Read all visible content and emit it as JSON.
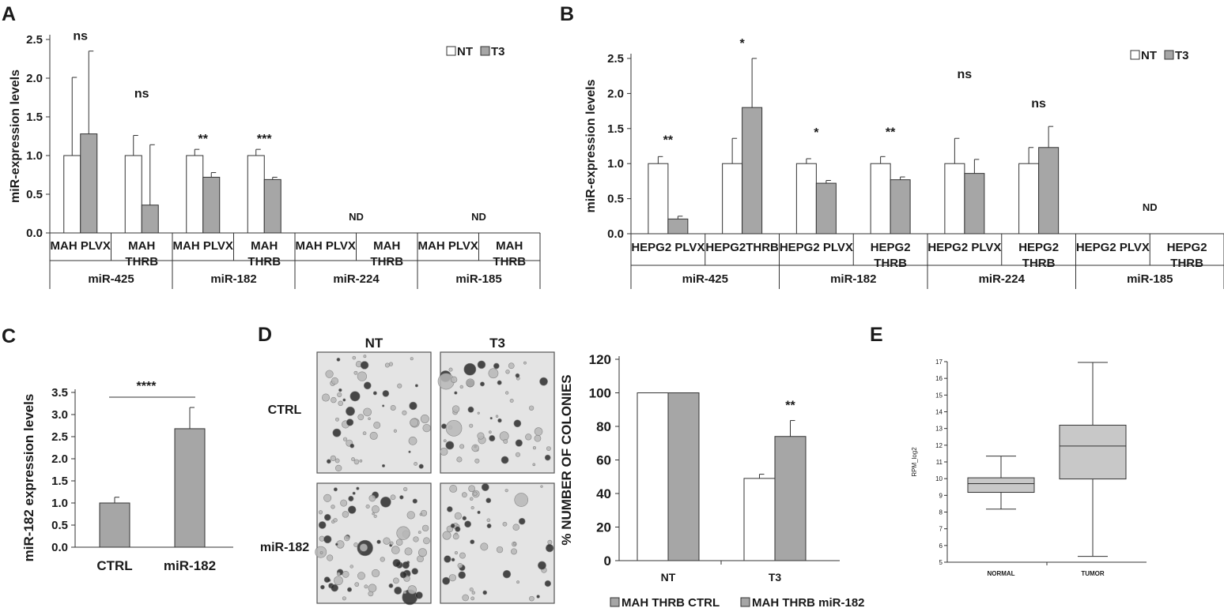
{
  "panels": [
    {
      "id": "A",
      "label": "A",
      "chart_data": {
        "type": "bar",
        "ylabel": "miR-expression levels",
        "ylim": [
          0,
          2.5
        ],
        "yticks": [
          "0.0",
          "0.5",
          "1.0",
          "1.5",
          "2.0",
          "2.5"
        ],
        "legend": [
          "NT",
          "T3"
        ],
        "legend_position": "top-right",
        "series": [
          {
            "name": "NT"
          },
          {
            "name": "T3"
          }
        ],
        "colors": {
          "NT": "#ffffff",
          "T3": "#a6a6a6"
        },
        "categories": [
          {
            "l1": "MAH PLVX",
            "l2": "",
            "nt": 1.0,
            "nt_err": 1.01,
            "t3": 1.28,
            "t3_err": 1.07,
            "sig": "ns"
          },
          {
            "l1": "MAH",
            "l2": "THRB",
            "nt": 1.0,
            "nt_err": 0.26,
            "t3": 0.36,
            "t3_err": 0.78,
            "sig": "ns"
          },
          {
            "l1": "MAH PLVX",
            "l2": "",
            "nt": 1.0,
            "nt_err": 0.08,
            "t3": 0.72,
            "t3_err": 0.06,
            "sig": "**"
          },
          {
            "l1": "MAH",
            "l2": "THRB",
            "nt": 1.0,
            "nt_err": 0.08,
            "t3": 0.69,
            "t3_err": 0.03,
            "sig": "***"
          },
          {
            "l1": "MAH PLVX",
            "l2": "",
            "nt": null,
            "t3": null,
            "sig": ""
          },
          {
            "l1": "MAH",
            "l2": "THRB",
            "nt": null,
            "t3": null,
            "sig": ""
          },
          {
            "l1": "MAH PLVX",
            "l2": "",
            "nt": null,
            "t3": null,
            "sig": ""
          },
          {
            "l1": "MAH",
            "l2": "THRB",
            "nt": null,
            "t3": null,
            "sig": ""
          }
        ],
        "groups": [
          "miR-425",
          "miR-182",
          "miR-224",
          "miR-185"
        ],
        "annotations": [
          {
            "text": "ND",
            "group": 2
          },
          {
            "text": "ND",
            "group": 3
          }
        ]
      }
    },
    {
      "id": "B",
      "label": "B",
      "chart_data": {
        "type": "bar",
        "ylabel": "miR-expression levels",
        "ylim": [
          0,
          2.5
        ],
        "yticks": [
          "0.0",
          "0.5",
          "1.0",
          "1.5",
          "2.0",
          "2.5"
        ],
        "legend": [
          "NT",
          "T3"
        ],
        "legend_position": "top-right",
        "series": [
          {
            "name": "NT"
          },
          {
            "name": "T3"
          }
        ],
        "colors": {
          "NT": "#ffffff",
          "T3": "#a6a6a6"
        },
        "categories": [
          {
            "l1": "HEPG2 PLVX",
            "l2": "",
            "nt": 1.0,
            "nt_err": 0.1,
            "t3": 0.21,
            "t3_err": 0.04,
            "sig": "**"
          },
          {
            "l1": "HEPG2THRB",
            "l2": "",
            "nt": 1.0,
            "nt_err": 0.36,
            "t3": 1.8,
            "t3_err": 0.7,
            "sig": "*"
          },
          {
            "l1": "HEPG2 PLVX",
            "l2": "",
            "nt": 1.0,
            "nt_err": 0.07,
            "t3": 0.72,
            "t3_err": 0.04,
            "sig": "*"
          },
          {
            "l1": "HEPG2",
            "l2": "THRB",
            "nt": 1.0,
            "nt_err": 0.1,
            "t3": 0.77,
            "t3_err": 0.04,
            "sig": "**"
          },
          {
            "l1": "HEPG2 PLVX",
            "l2": "",
            "nt": 1.0,
            "nt_err": 0.36,
            "t3": 0.86,
            "t3_err": 0.2,
            "sig": "ns"
          },
          {
            "l1": "HEPG2",
            "l2": "THRB",
            "nt": 1.0,
            "nt_err": 0.23,
            "t3": 1.23,
            "t3_err": 0.3,
            "sig": "ns"
          },
          {
            "l1": "HEPG2 PLVX",
            "l2": "",
            "nt": null,
            "t3": null,
            "sig": ""
          },
          {
            "l1": "HEPG2",
            "l2": "THRB",
            "nt": null,
            "t3": null,
            "sig": ""
          }
        ],
        "groups": [
          "miR-425",
          "miR-182",
          "miR-224",
          "miR-185"
        ],
        "annotations": [
          {
            "text": "ND",
            "group": 3
          }
        ]
      }
    },
    {
      "id": "C",
      "label": "C",
      "chart_data": {
        "type": "bar",
        "ylabel": "miR-182 expression levels",
        "ylim": [
          0,
          3.5
        ],
        "yticks": [
          "0.0",
          "0.5",
          "1.0",
          "1.5",
          "2.0",
          "2.5",
          "3.0",
          "3.5"
        ],
        "categories": [
          "CTRL",
          "miR-182"
        ],
        "values": [
          1.0,
          2.68
        ],
        "errors": [
          0.13,
          0.48
        ],
        "bar_color": "#a6a6a6",
        "significance": "****"
      }
    },
    {
      "id": "D",
      "label": "D",
      "image_grid": {
        "col_labels": [
          "NT",
          "T3"
        ],
        "row_labels": [
          "CTRL",
          "miR-182"
        ]
      },
      "chart_data": {
        "type": "bar",
        "ylabel": "% NUMBER OF COLONIES",
        "ylim": [
          0,
          120
        ],
        "yticks": [
          "0",
          "20",
          "40",
          "60",
          "80",
          "100",
          "120"
        ],
        "categories": [
          "NT",
          "T3"
        ],
        "series": [
          {
            "name": "MAH THRB CTRL",
            "values": [
              100,
              49
            ],
            "errors": [
              0,
              2.5
            ],
            "color": "#ffffff"
          },
          {
            "name": "MAH THRB miR-182",
            "values": [
              100,
              74
            ],
            "errors": [
              0,
              9.5
            ],
            "color": "#a6a6a6"
          }
        ],
        "significance": [
          "",
          "**"
        ],
        "legend_position": "bottom"
      }
    },
    {
      "id": "E",
      "label": "E",
      "chart_data": {
        "type": "box",
        "ylabel": "RPM_log2",
        "ylim": [
          5,
          17
        ],
        "yticks": [
          "5",
          "6",
          "7",
          "8",
          "9",
          "10",
          "11",
          "12",
          "13",
          "14",
          "15",
          "16",
          "17"
        ],
        "categories": [
          "NORMAL",
          "TUMOR"
        ],
        "boxes": [
          {
            "min": 8.18,
            "q1": 9.18,
            "median": 9.7,
            "q3": 10.05,
            "max": 11.35
          },
          {
            "min": 5.35,
            "q1": 9.98,
            "median": 11.95,
            "q3": 13.2,
            "max": 16.95
          }
        ],
        "box_color": "#c8c8c8"
      }
    }
  ]
}
